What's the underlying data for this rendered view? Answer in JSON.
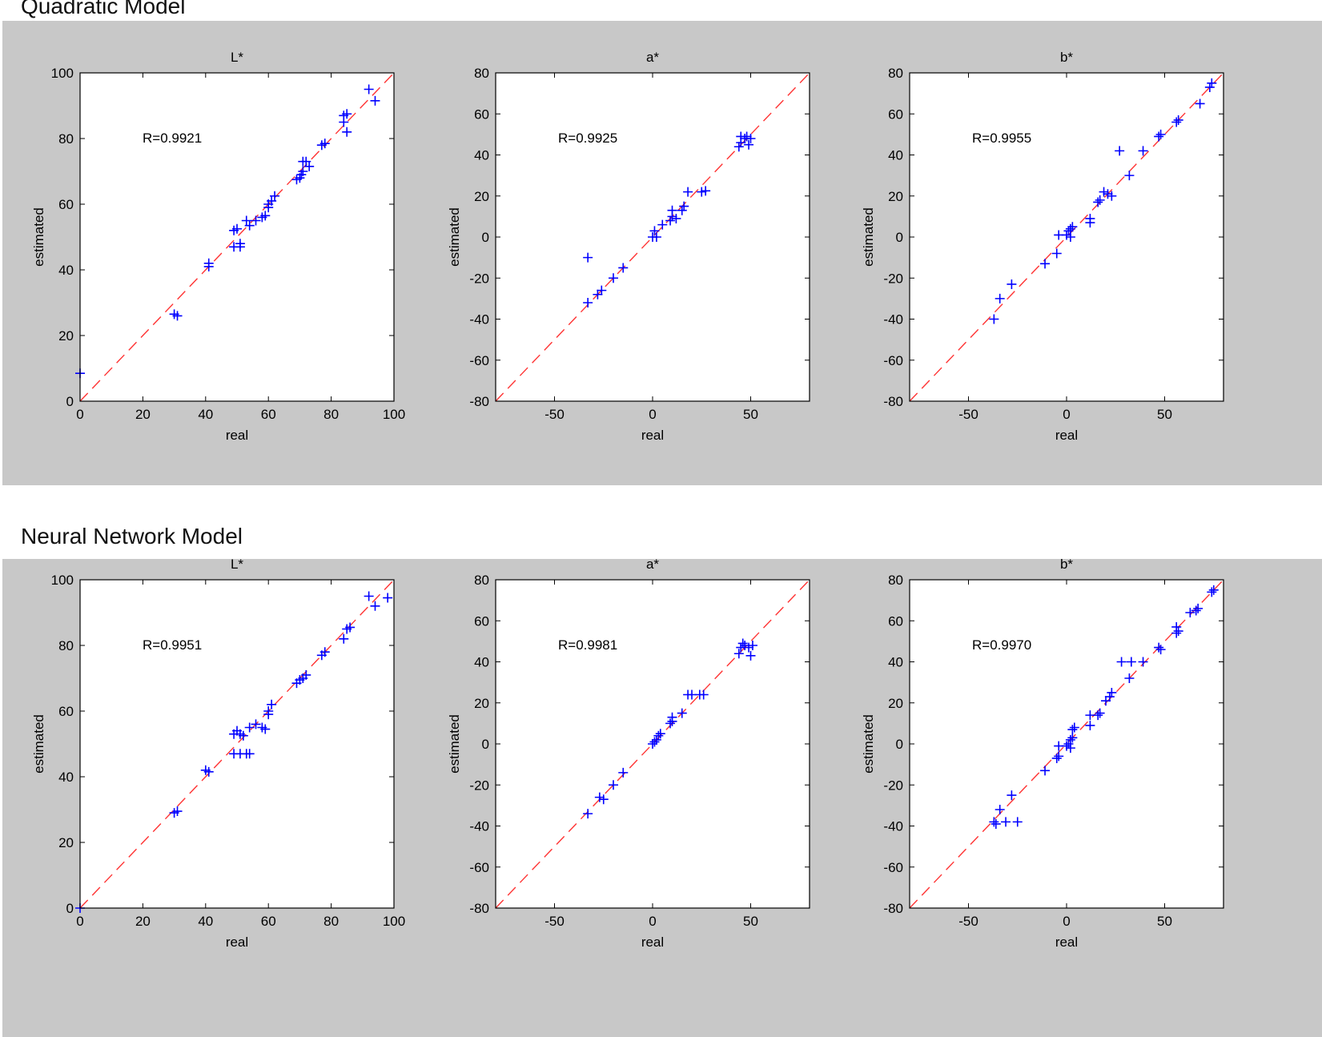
{
  "sections": [
    {
      "title": "Quadratic Model"
    },
    {
      "title": "Neural Network Model"
    }
  ],
  "colors": {
    "panel_bg": "#c8c8c8",
    "marker": "#0000ff",
    "reference_line": "#ff3333",
    "axes": "#000000"
  },
  "chart_data": [
    {
      "type": "scatter",
      "section": "Quadratic Model",
      "title": "L*",
      "xlabel": "real",
      "ylabel": "estimated",
      "xlim": [
        0,
        100
      ],
      "ylim": [
        0,
        100
      ],
      "xticks": [
        0,
        20,
        40,
        60,
        80,
        100
      ],
      "yticks": [
        0,
        20,
        40,
        60,
        80,
        100
      ],
      "annotation": "R=0.9921",
      "reference_line": "y = x",
      "marker": "+",
      "points": [
        [
          0,
          8.5
        ],
        [
          30,
          26.5
        ],
        [
          31,
          26
        ],
        [
          41,
          42
        ],
        [
          41,
          41
        ],
        [
          49,
          52
        ],
        [
          50,
          52.5
        ],
        [
          49,
          47
        ],
        [
          51,
          47
        ],
        [
          51,
          48
        ],
        [
          53,
          55
        ],
        [
          54,
          53.5
        ],
        [
          56,
          55
        ],
        [
          58,
          56
        ],
        [
          59,
          56.5
        ],
        [
          60,
          60
        ],
        [
          60,
          59
        ],
        [
          61,
          61
        ],
        [
          62,
          62.5
        ],
        [
          69,
          67.5
        ],
        [
          70,
          68
        ],
        [
          70.5,
          69
        ],
        [
          71,
          70
        ],
        [
          71,
          73
        ],
        [
          72,
          73
        ],
        [
          73,
          71.5
        ],
        [
          77,
          78
        ],
        [
          78,
          78.5
        ],
        [
          84,
          87
        ],
        [
          85,
          87.5
        ],
        [
          84,
          85
        ],
        [
          85,
          82
        ],
        [
          92,
          95
        ],
        [
          94,
          91.5
        ]
      ]
    },
    {
      "type": "scatter",
      "section": "Quadratic Model",
      "title": "a*",
      "xlabel": "real",
      "ylabel": "estimated",
      "xlim": [
        -80,
        80
      ],
      "ylim": [
        -80,
        80
      ],
      "xticks": [
        -50,
        0,
        50
      ],
      "yticks": [
        -80,
        -60,
        -40,
        -20,
        0,
        20,
        40,
        60,
        80
      ],
      "annotation": "R=0.9925",
      "reference_line": "y = x",
      "marker": "+",
      "points": [
        [
          -33,
          -10
        ],
        [
          -33,
          -32
        ],
        [
          -28,
          -28
        ],
        [
          -26,
          -26
        ],
        [
          -20,
          -20
        ],
        [
          -15,
          -15
        ],
        [
          0,
          0
        ],
        [
          1,
          3
        ],
        [
          2,
          0
        ],
        [
          5,
          6
        ],
        [
          9,
          8
        ],
        [
          10,
          10
        ],
        [
          10,
          13
        ],
        [
          12,
          9
        ],
        [
          15,
          13
        ],
        [
          16,
          15
        ],
        [
          18,
          22
        ],
        [
          25,
          22
        ],
        [
          27,
          22.5
        ],
        [
          44,
          44
        ],
        [
          45,
          46
        ],
        [
          45,
          49
        ],
        [
          47,
          48
        ],
        [
          48,
          49
        ],
        [
          49,
          45
        ],
        [
          50,
          48
        ]
      ]
    },
    {
      "type": "scatter",
      "section": "Quadratic Model",
      "title": "b*",
      "xlabel": "real",
      "ylabel": "estimated",
      "xlim": [
        -80,
        80
      ],
      "ylim": [
        -80,
        80
      ],
      "xticks": [
        -50,
        0,
        50
      ],
      "yticks": [
        -80,
        -60,
        -40,
        -20,
        0,
        20,
        40,
        60,
        80
      ],
      "annotation": "R=0.9955",
      "reference_line": "y = x",
      "marker": "+",
      "points": [
        [
          -37,
          -40
        ],
        [
          -34,
          -30
        ],
        [
          -28,
          -23
        ],
        [
          -11,
          -13
        ],
        [
          -5,
          -8
        ],
        [
          -4,
          1
        ],
        [
          0,
          1
        ],
        [
          1,
          3
        ],
        [
          2,
          0
        ],
        [
          2,
          4
        ],
        [
          3,
          5
        ],
        [
          12,
          7
        ],
        [
          12,
          9
        ],
        [
          16,
          17
        ],
        [
          17,
          18
        ],
        [
          19,
          22
        ],
        [
          21,
          21
        ],
        [
          23,
          20
        ],
        [
          27,
          42
        ],
        [
          32,
          30
        ],
        [
          39,
          42
        ],
        [
          47,
          49
        ],
        [
          48,
          50
        ],
        [
          56,
          56
        ],
        [
          57,
          57
        ],
        [
          68,
          65
        ],
        [
          73,
          73
        ],
        [
          74,
          75
        ]
      ]
    },
    {
      "type": "scatter",
      "section": "Neural Network Model",
      "title": "L*",
      "xlabel": "real",
      "ylabel": "estimated",
      "xlim": [
        0,
        100
      ],
      "ylim": [
        0,
        100
      ],
      "xticks": [
        0,
        20,
        40,
        60,
        80,
        100
      ],
      "yticks": [
        0,
        20,
        40,
        60,
        80,
        100
      ],
      "annotation": "R=0.9951",
      "reference_line": "y = x",
      "marker": "+",
      "points": [
        [
          0,
          0
        ],
        [
          30,
          29
        ],
        [
          31,
          29.5
        ],
        [
          40,
          42
        ],
        [
          41,
          41.5
        ],
        [
          49,
          53
        ],
        [
          50,
          54
        ],
        [
          51,
          53
        ],
        [
          52,
          52.5
        ],
        [
          49,
          47
        ],
        [
          51,
          47
        ],
        [
          53,
          47
        ],
        [
          54,
          47
        ],
        [
          54,
          55
        ],
        [
          56,
          56
        ],
        [
          58,
          55
        ],
        [
          59,
          54.5
        ],
        [
          60,
          60
        ],
        [
          61,
          62
        ],
        [
          60,
          59
        ],
        [
          69,
          68.5
        ],
        [
          70,
          69.5
        ],
        [
          71,
          70
        ],
        [
          72,
          71
        ],
        [
          77,
          77
        ],
        [
          78,
          78
        ],
        [
          84,
          82
        ],
        [
          85,
          85
        ],
        [
          86,
          85.5
        ],
        [
          92,
          95
        ],
        [
          94,
          92
        ],
        [
          98,
          94.5
        ]
      ]
    },
    {
      "type": "scatter",
      "section": "Neural Network Model",
      "title": "a*",
      "xlabel": "real",
      "ylabel": "estimated",
      "xlim": [
        -80,
        80
      ],
      "ylim": [
        -80,
        80
      ],
      "xticks": [
        -50,
        0,
        50
      ],
      "yticks": [
        -80,
        -60,
        -40,
        -20,
        0,
        20,
        40,
        60,
        80
      ],
      "annotation": "R=0.9981",
      "reference_line": "y = x",
      "marker": "+",
      "points": [
        [
          -33,
          -34
        ],
        [
          -27,
          -26
        ],
        [
          -25,
          -27
        ],
        [
          -20,
          -20
        ],
        [
          -15,
          -14
        ],
        [
          0,
          0
        ],
        [
          1,
          1
        ],
        [
          2,
          2
        ],
        [
          3,
          4
        ],
        [
          4,
          5
        ],
        [
          9,
          10
        ],
        [
          10,
          11
        ],
        [
          10,
          13
        ],
        [
          15,
          15
        ],
        [
          18,
          24
        ],
        [
          20,
          24
        ],
        [
          24,
          24
        ],
        [
          26,
          24
        ],
        [
          44,
          44
        ],
        [
          45,
          47
        ],
        [
          46,
          49
        ],
        [
          47,
          48
        ],
        [
          49,
          47
        ],
        [
          50,
          43
        ],
        [
          51,
          48
        ]
      ]
    },
    {
      "type": "scatter",
      "section": "Neural Network Model",
      "title": "b*",
      "xlabel": "real",
      "ylabel": "estimated",
      "xlim": [
        -80,
        80
      ],
      "ylim": [
        -80,
        80
      ],
      "xticks": [
        -50,
        0,
        50
      ],
      "yticks": [
        -80,
        -60,
        -40,
        -20,
        0,
        20,
        40,
        60,
        80
      ],
      "annotation": "R=0.9970",
      "reference_line": "y = x",
      "marker": "+",
      "points": [
        [
          -37,
          -38
        ],
        [
          -36,
          -39
        ],
        [
          -34,
          -32
        ],
        [
          -31,
          -38
        ],
        [
          -25,
          -38
        ],
        [
          -28,
          -25
        ],
        [
          -11,
          -13
        ],
        [
          -5,
          -7
        ],
        [
          -4,
          -6
        ],
        [
          -4,
          -1
        ],
        [
          0,
          -1
        ],
        [
          1,
          0
        ],
        [
          2,
          -2
        ],
        [
          2,
          2
        ],
        [
          3,
          3
        ],
        [
          3,
          7
        ],
        [
          4,
          8
        ],
        [
          12,
          9
        ],
        [
          12,
          14
        ],
        [
          16,
          14
        ],
        [
          17,
          15
        ],
        [
          20,
          21
        ],
        [
          22,
          23
        ],
        [
          23,
          25
        ],
        [
          28,
          40
        ],
        [
          32,
          32
        ],
        [
          33,
          40
        ],
        [
          39,
          40
        ],
        [
          47,
          47
        ],
        [
          48,
          46
        ],
        [
          56,
          54
        ],
        [
          56,
          57
        ],
        [
          57,
          55
        ],
        [
          63,
          64
        ],
        [
          66,
          65
        ],
        [
          67,
          66
        ],
        [
          74,
          74
        ],
        [
          75,
          75
        ]
      ]
    }
  ]
}
